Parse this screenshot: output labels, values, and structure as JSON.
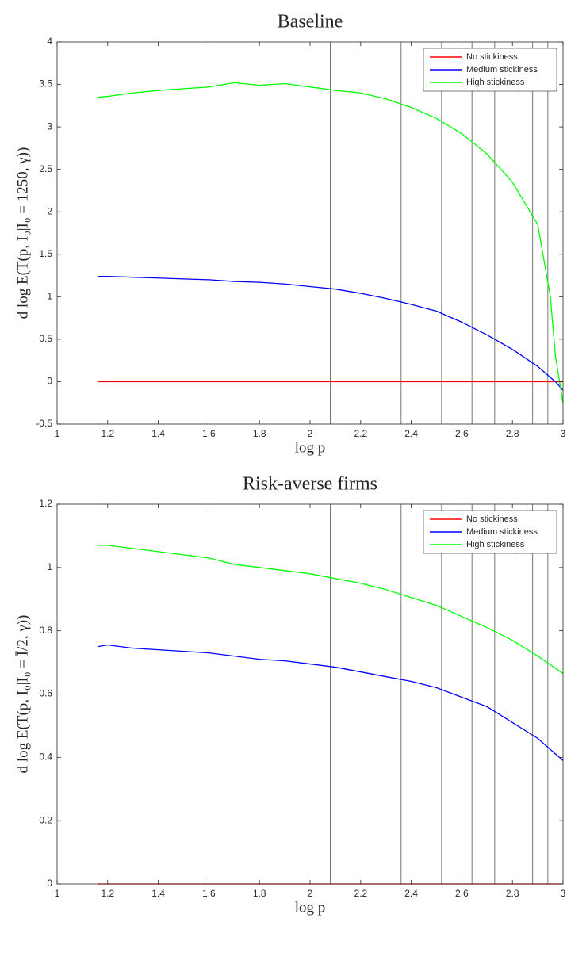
{
  "chart_data": [
    {
      "type": "line",
      "title": "Baseline",
      "x_label": "log p",
      "y_label": "d log E(T(p, I₀|I₀ = 1250, γ))",
      "x": [
        1.16,
        1.2,
        1.3,
        1.4,
        1.5,
        1.6,
        1.7,
        1.8,
        1.9,
        2.0,
        2.1,
        2.2,
        2.3,
        2.4,
        2.5,
        2.6,
        2.7,
        2.8,
        2.9,
        2.95,
        2.97,
        3.0
      ],
      "series": [
        {
          "name": "No stickiness",
          "color": "#ff0000",
          "values": [
            0,
            0,
            0,
            0,
            0,
            0,
            0,
            0,
            0,
            0,
            0,
            0,
            0,
            0,
            0,
            0,
            0,
            0,
            0,
            0,
            0,
            0
          ]
        },
        {
          "name": "Medium stickiness",
          "color": "#0000ff",
          "values": [
            1.24,
            1.24,
            1.23,
            1.22,
            1.21,
            1.2,
            1.18,
            1.17,
            1.15,
            1.12,
            1.09,
            1.04,
            0.98,
            0.91,
            0.83,
            0.7,
            0.55,
            0.38,
            0.18,
            0.05,
            0,
            -0.1
          ]
        },
        {
          "name": "High stickiness",
          "color": "#00ff00",
          "values": [
            3.35,
            3.36,
            3.4,
            3.43,
            3.45,
            3.47,
            3.52,
            3.49,
            3.51,
            3.47,
            3.43,
            3.4,
            3.33,
            3.23,
            3.1,
            2.92,
            2.68,
            2.35,
            1.85,
            1.0,
            0.3,
            -0.25
          ]
        }
      ],
      "vlines": [
        2.08,
        2.36,
        2.52,
        2.64,
        2.73,
        2.81,
        2.88,
        2.94
      ],
      "xlim": [
        1,
        3
      ],
      "xticks": [
        1,
        1.2,
        1.4,
        1.6,
        1.8,
        2,
        2.2,
        2.4,
        2.6,
        2.8,
        3
      ],
      "ylim": [
        -0.5,
        4
      ],
      "yticks": [
        -0.5,
        0,
        0.5,
        1,
        1.5,
        2,
        2.5,
        3,
        3.5,
        4
      ],
      "legend": "upper right",
      "grid": false
    },
    {
      "type": "line",
      "title": "Risk-averse firms",
      "x_label": "log p",
      "y_label": "d log E(T(p, I₀|I₀ = Ī/2, γ))",
      "x": [
        1.16,
        1.2,
        1.3,
        1.4,
        1.5,
        1.6,
        1.7,
        1.8,
        1.9,
        2.0,
        2.1,
        2.2,
        2.3,
        2.4,
        2.5,
        2.6,
        2.7,
        2.8,
        2.9,
        3.0
      ],
      "series": [
        {
          "name": "No stickiness",
          "color": "#ff0000",
          "values": [
            0,
            0,
            0,
            0,
            0,
            0,
            0,
            0,
            0,
            0,
            0,
            0,
            0,
            0,
            0,
            0,
            0,
            0,
            0,
            0
          ]
        },
        {
          "name": "Medium stickiness",
          "color": "#0000ff",
          "values": [
            0.75,
            0.755,
            0.745,
            0.74,
            0.735,
            0.73,
            0.72,
            0.71,
            0.705,
            0.695,
            0.685,
            0.67,
            0.655,
            0.64,
            0.62,
            0.59,
            0.56,
            0.51,
            0.46,
            0.39
          ]
        },
        {
          "name": "High stickiness",
          "color": "#00ff00",
          "values": [
            1.07,
            1.07,
            1.06,
            1.05,
            1.04,
            1.03,
            1.01,
            1.0,
            0.99,
            0.98,
            0.965,
            0.95,
            0.93,
            0.905,
            0.88,
            0.845,
            0.81,
            0.77,
            0.72,
            0.665
          ]
        }
      ],
      "vlines": [
        2.08,
        2.36,
        2.52,
        2.64,
        2.73,
        2.81,
        2.88,
        2.94
      ],
      "xlim": [
        1,
        3
      ],
      "xticks": [
        1,
        1.2,
        1.4,
        1.6,
        1.8,
        2,
        2.2,
        2.4,
        2.6,
        2.8,
        3
      ],
      "ylim": [
        0,
        1.2
      ],
      "yticks": [
        0,
        0.2,
        0.4,
        0.6,
        0.8,
        1,
        1.2
      ],
      "legend": "upper right",
      "grid": false
    }
  ]
}
